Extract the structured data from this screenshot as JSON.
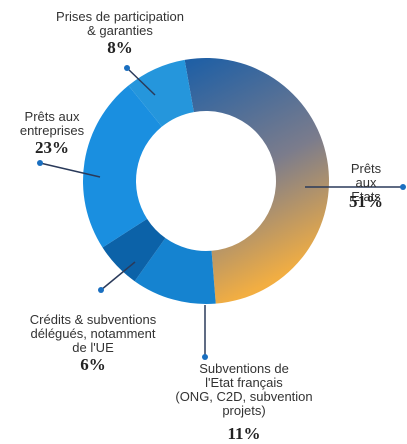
{
  "chart_data": {
    "type": "donut",
    "categories": [
      "Prêts aux\nEtats",
      "Subventions de\nl'Etat français\n(ONG, C2D, subvention\nprojets)",
      "Crédits & subventions\ndélégués, notamment\nde l'UE",
      "Prêts aux\nentreprises",
      "Prises de participation\n& garanties"
    ],
    "values": [
      51,
      11,
      6,
      23,
      8
    ],
    "value_labels": [
      "51%",
      "11%",
      "6%",
      "23%",
      "8%"
    ],
    "colors": [
      "#3a6fa8",
      "#1583d0",
      "#0c62a8",
      "#1a8fe0",
      "#2596dc"
    ]
  }
}
